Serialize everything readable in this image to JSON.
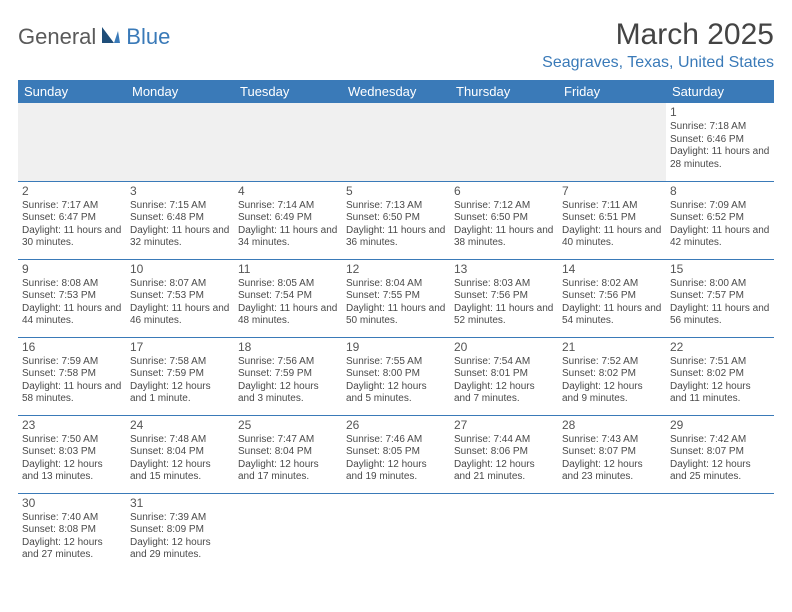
{
  "logo": {
    "part1": "General",
    "part2": "Blue"
  },
  "title": "March 2025",
  "location": "Seagraves, Texas, United States",
  "colors": {
    "header_bg": "#3a7ab8",
    "header_text": "#ffffff",
    "accent": "#3a7ab8",
    "body_text": "#4a4a4a",
    "empty_bg": "#f0f0f0"
  },
  "weekdays": [
    "Sunday",
    "Monday",
    "Tuesday",
    "Wednesday",
    "Thursday",
    "Friday",
    "Saturday"
  ],
  "layout": {
    "first_weekday_index": 6,
    "days_in_month": 31,
    "rows": 6
  },
  "days": {
    "1": {
      "sunrise": "7:18 AM",
      "sunset": "6:46 PM",
      "daylight": "11 hours and 28 minutes."
    },
    "2": {
      "sunrise": "7:17 AM",
      "sunset": "6:47 PM",
      "daylight": "11 hours and 30 minutes."
    },
    "3": {
      "sunrise": "7:15 AM",
      "sunset": "6:48 PM",
      "daylight": "11 hours and 32 minutes."
    },
    "4": {
      "sunrise": "7:14 AM",
      "sunset": "6:49 PM",
      "daylight": "11 hours and 34 minutes."
    },
    "5": {
      "sunrise": "7:13 AM",
      "sunset": "6:50 PM",
      "daylight": "11 hours and 36 minutes."
    },
    "6": {
      "sunrise": "7:12 AM",
      "sunset": "6:50 PM",
      "daylight": "11 hours and 38 minutes."
    },
    "7": {
      "sunrise": "7:11 AM",
      "sunset": "6:51 PM",
      "daylight": "11 hours and 40 minutes."
    },
    "8": {
      "sunrise": "7:09 AM",
      "sunset": "6:52 PM",
      "daylight": "11 hours and 42 minutes."
    },
    "9": {
      "sunrise": "8:08 AM",
      "sunset": "7:53 PM",
      "daylight": "11 hours and 44 minutes."
    },
    "10": {
      "sunrise": "8:07 AM",
      "sunset": "7:53 PM",
      "daylight": "11 hours and 46 minutes."
    },
    "11": {
      "sunrise": "8:05 AM",
      "sunset": "7:54 PM",
      "daylight": "11 hours and 48 minutes."
    },
    "12": {
      "sunrise": "8:04 AM",
      "sunset": "7:55 PM",
      "daylight": "11 hours and 50 minutes."
    },
    "13": {
      "sunrise": "8:03 AM",
      "sunset": "7:56 PM",
      "daylight": "11 hours and 52 minutes."
    },
    "14": {
      "sunrise": "8:02 AM",
      "sunset": "7:56 PM",
      "daylight": "11 hours and 54 minutes."
    },
    "15": {
      "sunrise": "8:00 AM",
      "sunset": "7:57 PM",
      "daylight": "11 hours and 56 minutes."
    },
    "16": {
      "sunrise": "7:59 AM",
      "sunset": "7:58 PM",
      "daylight": "11 hours and 58 minutes."
    },
    "17": {
      "sunrise": "7:58 AM",
      "sunset": "7:59 PM",
      "daylight": "12 hours and 1 minute."
    },
    "18": {
      "sunrise": "7:56 AM",
      "sunset": "7:59 PM",
      "daylight": "12 hours and 3 minutes."
    },
    "19": {
      "sunrise": "7:55 AM",
      "sunset": "8:00 PM",
      "daylight": "12 hours and 5 minutes."
    },
    "20": {
      "sunrise": "7:54 AM",
      "sunset": "8:01 PM",
      "daylight": "12 hours and 7 minutes."
    },
    "21": {
      "sunrise": "7:52 AM",
      "sunset": "8:02 PM",
      "daylight": "12 hours and 9 minutes."
    },
    "22": {
      "sunrise": "7:51 AM",
      "sunset": "8:02 PM",
      "daylight": "12 hours and 11 minutes."
    },
    "23": {
      "sunrise": "7:50 AM",
      "sunset": "8:03 PM",
      "daylight": "12 hours and 13 minutes."
    },
    "24": {
      "sunrise": "7:48 AM",
      "sunset": "8:04 PM",
      "daylight": "12 hours and 15 minutes."
    },
    "25": {
      "sunrise": "7:47 AM",
      "sunset": "8:04 PM",
      "daylight": "12 hours and 17 minutes."
    },
    "26": {
      "sunrise": "7:46 AM",
      "sunset": "8:05 PM",
      "daylight": "12 hours and 19 minutes."
    },
    "27": {
      "sunrise": "7:44 AM",
      "sunset": "8:06 PM",
      "daylight": "12 hours and 21 minutes."
    },
    "28": {
      "sunrise": "7:43 AM",
      "sunset": "8:07 PM",
      "daylight": "12 hours and 23 minutes."
    },
    "29": {
      "sunrise": "7:42 AM",
      "sunset": "8:07 PM",
      "daylight": "12 hours and 25 minutes."
    },
    "30": {
      "sunrise": "7:40 AM",
      "sunset": "8:08 PM",
      "daylight": "12 hours and 27 minutes."
    },
    "31": {
      "sunrise": "7:39 AM",
      "sunset": "8:09 PM",
      "daylight": "12 hours and 29 minutes."
    }
  },
  "labels": {
    "sunrise": "Sunrise: ",
    "sunset": "Sunset: ",
    "daylight": "Daylight: "
  }
}
